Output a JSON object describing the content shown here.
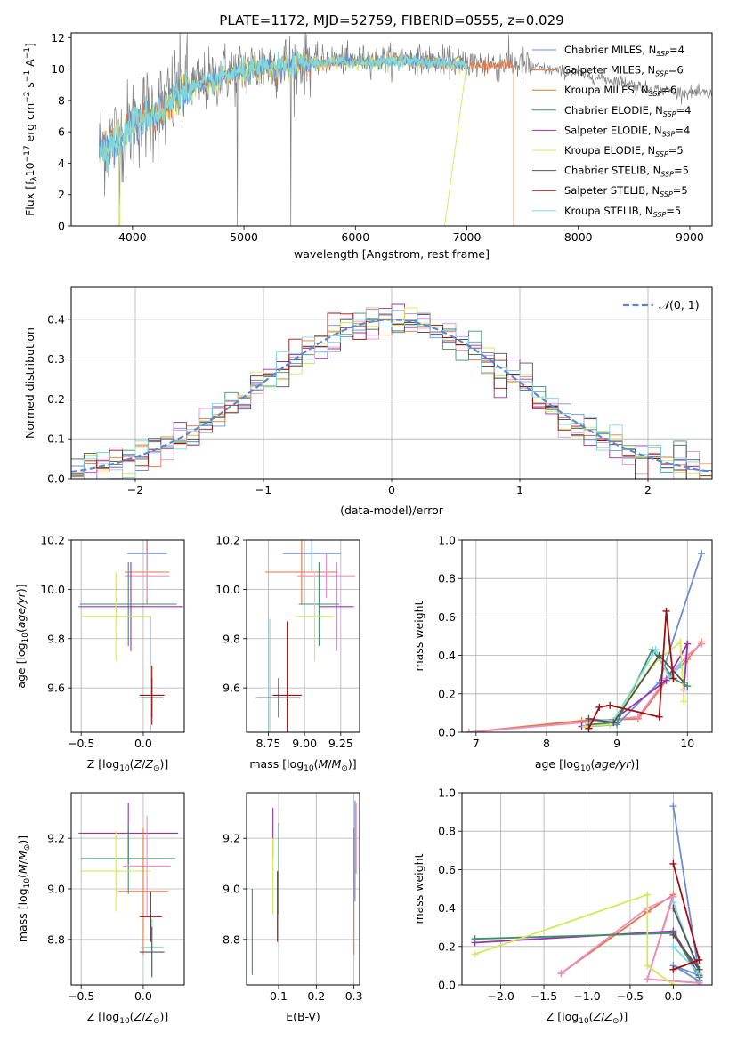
{
  "figure": {
    "title": "PLATE=1172, MJD=52759, FIBERID=0555, z=0.029"
  },
  "series_colors": {
    "Chabrier MILES": "#6a8fd0",
    "Salpeter MILES": "#e8733a",
    "Kroupa MILES": "#c9842a",
    "Chabrier ELODIE": "#3f8f6a",
    "Salpeter ELODIE": "#9b30b0",
    "Kroupa ELODIE": "#d4e85a",
    "Chabrier STELIB": "#555555",
    "Salpeter STELIB": "#a00f12",
    "Kroupa STELIB": "#7fd8de",
    "Kroupa MILES (pink)": "#e890c8"
  },
  "chart_data": [
    {
      "id": "spectrum",
      "type": "line",
      "title": "PLATE=1172, MJD=52759, FIBERID=0555, z=0.029",
      "xlabel": "wavelength [Angstrom, rest frame]",
      "ylabel": "Flux [f_λ10^-17 erg cm^-2 s^-1 A^-1]",
      "xlim": [
        3450,
        9200
      ],
      "ylim": [
        0,
        12.3
      ],
      "xticks": [
        4000,
        5000,
        6000,
        7000,
        8000,
        9000
      ],
      "yticks": [
        0,
        2,
        4,
        6,
        8,
        10,
        12
      ],
      "legend_position": "top-right",
      "legend": [
        {
          "name": "Chabrier MILES",
          "nssp": "4"
        },
        {
          "name": "Salpeter MILES",
          "nssp": "6"
        },
        {
          "name": "Kroupa MILES",
          "nssp": "6"
        },
        {
          "name": "Chabrier ELODIE",
          "nssp": "4"
        },
        {
          "name": "Salpeter ELODIE",
          "nssp": "4"
        },
        {
          "name": "Kroupa ELODIE",
          "nssp": "5"
        },
        {
          "name": "Chabrier STELIB",
          "nssp": "5"
        },
        {
          "name": "Salpeter STELIB",
          "nssp": "5"
        },
        {
          "name": "Kroupa STELIB",
          "nssp": "5"
        }
      ],
      "data_wavelength_range": [
        3700,
        9200
      ],
      "model_wavelength_range": [
        3700,
        7420
      ],
      "continuum": [
        [
          3700,
          5.0
        ],
        [
          3800,
          5.4
        ],
        [
          3900,
          5.6
        ],
        [
          4000,
          6.5
        ],
        [
          4100,
          7.1
        ],
        [
          4200,
          7.3
        ],
        [
          4300,
          7.6
        ],
        [
          4400,
          8.6
        ],
        [
          4500,
          8.9
        ],
        [
          4600,
          9.0
        ],
        [
          4700,
          9.3
        ],
        [
          4800,
          9.7
        ],
        [
          5000,
          10.0
        ],
        [
          5200,
          10.2
        ],
        [
          5400,
          10.4
        ],
        [
          5600,
          10.5
        ],
        [
          5800,
          10.6
        ],
        [
          6000,
          10.6
        ],
        [
          6200,
          10.6
        ],
        [
          6400,
          10.7
        ],
        [
          6600,
          10.6
        ],
        [
          6800,
          10.5
        ],
        [
          7000,
          10.4
        ],
        [
          7200,
          10.3
        ],
        [
          7400,
          10.4
        ],
        [
          7600,
          10.1
        ],
        [
          7800,
          9.9
        ],
        [
          8000,
          9.7
        ],
        [
          8200,
          9.4
        ],
        [
          8400,
          9.2
        ],
        [
          8600,
          8.8
        ],
        [
          8800,
          8.6
        ],
        [
          9000,
          8.5
        ],
        [
          9200,
          8.4
        ]
      ]
    },
    {
      "id": "residuals",
      "type": "histogram",
      "xlabel": "(data-model)/error",
      "ylabel": "Normed distribution",
      "xlim": [
        -2.5,
        2.5
      ],
      "ylim": [
        0,
        0.48
      ],
      "xticks": [
        -2,
        -1,
        0,
        1,
        2
      ],
      "yticks": [
        0,
        0.1,
        0.2,
        0.3,
        0.4
      ],
      "legend_position": "top-right",
      "legend": "N(0,1)",
      "grid": true,
      "bin_width": 0.1
    },
    {
      "id": "age-vs-Z",
      "type": "errorbar",
      "xlabel": "Z [log10(Z/Z⊙)]",
      "ylabel": "age [log10(age/yr)]",
      "xlim": [
        -0.58,
        0.33
      ],
      "ylim": [
        9.42,
        10.2
      ],
      "xticks": [
        -0.5,
        0.0
      ],
      "yticks": [
        9.6,
        9.8,
        10.0,
        10.2
      ],
      "grid": true,
      "points": [
        {
          "s": "Chabrier MILES",
          "x": 0.03,
          "y": 10.145,
          "xe": 0.16,
          "ye": 0.07
        },
        {
          "s": "Salpeter MILES",
          "x": 0.03,
          "y": 10.07,
          "xe": 0.18,
          "ye": 0.13
        },
        {
          "s": "Kroupa MILES (pink)",
          "x": 0.03,
          "y": 10.055,
          "xe": 0.18,
          "ye": 0.09
        },
        {
          "s": "Salpeter ELODIE",
          "x": -0.1,
          "y": 9.93,
          "xe": 0.42,
          "ye": 0.18
        },
        {
          "s": "Chabrier ELODIE",
          "x": -0.12,
          "y": 9.94,
          "xe": 0.39,
          "ye": 0.17
        },
        {
          "s": "Kroupa ELODIE",
          "x": -0.22,
          "y": 9.89,
          "xe": 0.28,
          "ye": 0.18
        },
        {
          "s": "Kroupa STELIB",
          "x": 0.06,
          "y": 9.56,
          "xe": 0.1,
          "ye": 0.33
        },
        {
          "s": "Chabrier STELIB",
          "x": 0.07,
          "y": 9.56,
          "xe": 0.09,
          "ye": 0.08
        },
        {
          "s": "Salpeter STELIB",
          "x": 0.07,
          "y": 9.57,
          "xe": 0.1,
          "ye": 0.12
        }
      ]
    },
    {
      "id": "age-vs-mass",
      "type": "errorbar",
      "xlabel": "mass [log10(M/M⊙)]",
      "xlim": [
        8.6,
        9.38
      ],
      "ylim": [
        9.42,
        10.2
      ],
      "xticks": [
        8.75,
        9.0,
        9.25
      ],
      "yticks": [
        9.6,
        9.8,
        10.0,
        10.2
      ],
      "grid": true,
      "points": [
        {
          "s": "Chabrier MILES",
          "x": 9.05,
          "y": 10.145,
          "xe": 0.2,
          "ye": 0.07
        },
        {
          "s": "Salpeter MILES",
          "x": 8.98,
          "y": 10.07,
          "xe": 0.25,
          "ye": 0.13
        },
        {
          "s": "Kroupa MILES (pink)",
          "x": 9.15,
          "y": 10.055,
          "xe": 0.2,
          "ye": 0.09
        },
        {
          "s": "Salpeter ELODIE",
          "x": 9.22,
          "y": 9.93,
          "xe": 0.12,
          "ye": 0.18
        },
        {
          "s": "Chabrier ELODIE",
          "x": 9.1,
          "y": 9.94,
          "xe": 0.14,
          "ye": 0.17
        },
        {
          "s": "Kroupa ELODIE",
          "x": 9.07,
          "y": 9.89,
          "xe": 0.13,
          "ye": 0.18
        },
        {
          "s": "Kroupa STELIB",
          "x": 8.76,
          "y": 9.56,
          "xe": 0.1,
          "ye": 0.32
        },
        {
          "s": "Chabrier STELIB",
          "x": 8.82,
          "y": 9.56,
          "xe": 0.15,
          "ye": 0.08
        },
        {
          "s": "Salpeter STELIB",
          "x": 8.88,
          "y": 9.57,
          "xe": 0.1,
          "ye": 0.3
        }
      ]
    },
    {
      "id": "massweight-vs-age",
      "type": "line",
      "xlabel": "age [log10(age/yr)]",
      "ylabel": "mass weight",
      "xlim": [
        6.8,
        10.35
      ],
      "ylim": [
        0,
        1.0
      ],
      "xticks": [
        7,
        8,
        9,
        10
      ],
      "yticks": [
        0.0,
        0.2,
        0.4,
        0.6,
        0.8,
        1.0
      ],
      "grid": true,
      "series": [
        {
          "s": "Salpeter MILES",
          "x": [
            6.9,
            8.5,
            9.3,
            9.7,
            10.0,
            10.2
          ],
          "y": [
            0.0,
            0.06,
            0.07,
            0.27,
            0.38,
            0.47
          ]
        },
        {
          "s": "Kroupa MILES (pink)",
          "x": [
            6.9,
            8.5,
            9.3,
            9.7,
            10.0,
            10.2
          ],
          "y": [
            0.0,
            0.05,
            0.08,
            0.28,
            0.4,
            0.46
          ]
        },
        {
          "s": "Chabrier MILES",
          "x": [
            8.6,
            9.0,
            9.6,
            10.2
          ],
          "y": [
            0.03,
            0.04,
            0.26,
            0.93
          ]
        },
        {
          "s": "Salpeter ELODIE",
          "x": [
            8.5,
            8.9,
            9.7,
            10.0,
            9.95
          ],
          "y": [
            0.03,
            0.05,
            0.27,
            0.46,
            0.22
          ]
        },
        {
          "s": "Chabrier ELODIE",
          "x": [
            8.6,
            9.0,
            9.5,
            9.8,
            10.0
          ],
          "y": [
            0.04,
            0.05,
            0.43,
            0.28,
            0.24
          ]
        },
        {
          "s": "Kroupa ELODIE",
          "x": [
            8.55,
            8.9,
            9.5,
            9.9,
            9.95
          ],
          "y": [
            0.03,
            0.04,
            0.35,
            0.47,
            0.16
          ]
        },
        {
          "s": "Kroupa STELIB",
          "x": [
            8.6,
            8.95,
            9.55,
            9.75,
            9.9
          ],
          "y": [
            0.07,
            0.06,
            0.43,
            0.28,
            0.35
          ]
        },
        {
          "s": "Chabrier STELIB",
          "x": [
            8.6,
            8.95,
            9.6,
            9.95
          ],
          "y": [
            0.07,
            0.05,
            0.4,
            0.26
          ]
        },
        {
          "s": "Salpeter STELIB",
          "x": [
            8.6,
            8.75,
            8.9,
            9.6,
            9.7,
            9.8
          ],
          "y": [
            0.02,
            0.13,
            0.14,
            0.08,
            0.63,
            0.28
          ]
        }
      ]
    },
    {
      "id": "mass-vs-Z",
      "type": "errorbar",
      "xlabel": "Z [log10(Z/Z⊙)]",
      "ylabel": "mass [log10(M/M⊙)]",
      "xlim": [
        -0.58,
        0.33
      ],
      "ylim": [
        8.62,
        9.38
      ],
      "xticks": [
        -0.5,
        0.0
      ],
      "yticks": [
        8.8,
        9.0,
        9.2
      ],
      "grid": true,
      "points": [
        {
          "s": "Salpeter ELODIE",
          "x": -0.12,
          "y": 9.22,
          "xe": 0.4,
          "ye": 0.12
        },
        {
          "s": "Chabrier ELODIE",
          "x": -0.12,
          "y": 9.12,
          "xe": 0.38,
          "ye": 0.14
        },
        {
          "s": "Kroupa MILES (pink)",
          "x": 0.03,
          "y": 9.09,
          "xe": 0.19,
          "ye": 0.2
        },
        {
          "s": "Kroupa ELODIE",
          "x": -0.22,
          "y": 9.07,
          "xe": 0.28,
          "ye": 0.16
        },
        {
          "s": "Salpeter MILES",
          "x": 0.0,
          "y": 8.99,
          "xe": 0.2,
          "ye": 0.25
        },
        {
          "s": "Salpeter STELIB",
          "x": 0.06,
          "y": 8.89,
          "xe": 0.09,
          "ye": 0.1
        },
        {
          "s": "Kroupa STELIB",
          "x": 0.07,
          "y": 8.77,
          "xe": 0.09,
          "ye": 0.11
        },
        {
          "s": "Chabrier STELIB",
          "x": 0.07,
          "y": 8.75,
          "xe": 0.1,
          "ye": 0.1
        }
      ]
    },
    {
      "id": "mass-vs-EBV",
      "type": "errorbar",
      "xlabel": "E(B-V)",
      "xlim": [
        0.015,
        0.315
      ],
      "ylim": [
        8.62,
        9.38
      ],
      "xticks": [
        0.1,
        0.2,
        0.3
      ],
      "yticks": [
        8.8,
        9.0,
        9.2
      ],
      "grid": true,
      "points": [
        {
          "s": "Chabrier ELODIE",
          "x": 0.03,
          "y": 8.83,
          "ye": 0.17
        },
        {
          "s": "Salpeter ELODIE",
          "x": 0.085,
          "y": 9.22,
          "ye": 0.1
        },
        {
          "s": "Kroupa ELODIE",
          "x": 0.085,
          "y": 9.05,
          "ye": 0.15
        },
        {
          "s": "Chabrier ELODIE",
          "x": 0.1,
          "y": 9.08,
          "ye": 0.18
        },
        {
          "s": "Salpeter STELIB",
          "x": 0.097,
          "y": 8.93,
          "ye": 0.14
        },
        {
          "s": "Salpeter MILES",
          "x": 0.3,
          "y": 8.99,
          "ye": 0.25
        },
        {
          "s": "Chabrier MILES",
          "x": 0.303,
          "y": 9.15,
          "ye": 0.2
        },
        {
          "s": "Kroupa MILES (pink)",
          "x": 0.306,
          "y": 9.2,
          "ye": 0.14
        }
      ]
    },
    {
      "id": "massweight-vs-Z",
      "type": "line",
      "xlabel": "Z [log10(Z/Z⊙)]",
      "ylabel": "mass weight",
      "xlim": [
        -2.45,
        0.45
      ],
      "ylim": [
        0,
        1.0
      ],
      "xticks": [
        -2.0,
        -1.5,
        -1.0,
        -0.5,
        0.0
      ],
      "yticks": [
        0.0,
        0.2,
        0.4,
        0.6,
        0.8,
        1.0
      ],
      "grid": true,
      "series": [
        {
          "s": "Chabrier MILES",
          "x": [
            0.0,
            0.3,
            0.0,
            0.3
          ],
          "y": [
            0.93,
            0.05,
            0.1,
            0.02
          ]
        },
        {
          "s": "Salpeter MILES",
          "x": [
            -1.3,
            -0.3,
            0.0,
            -0.3,
            0.3
          ],
          "y": [
            0.06,
            0.38,
            0.47,
            0.03,
            0.01
          ]
        },
        {
          "s": "Kroupa MILES (pink)",
          "x": [
            -1.3,
            -0.3,
            0.0,
            -0.3,
            0.3
          ],
          "y": [
            0.06,
            0.4,
            0.46,
            0.03,
            0.01
          ]
        },
        {
          "s": "Salpeter ELODIE",
          "x": [
            -2.3,
            0.0,
            0.3
          ],
          "y": [
            0.22,
            0.28,
            0.05
          ]
        },
        {
          "s": "Chabrier ELODIE",
          "x": [
            -2.3,
            0.0,
            0.3
          ],
          "y": [
            0.24,
            0.27,
            0.04
          ]
        },
        {
          "s": "Kroupa ELODIE",
          "x": [
            -2.3,
            -0.3,
            -0.3,
            0.0
          ],
          "y": [
            0.16,
            0.47,
            0.1,
            0.0
          ]
        },
        {
          "s": "Kroupa STELIB",
          "x": [
            0.0,
            0.3,
            0.0
          ],
          "y": [
            0.43,
            0.06,
            0.2
          ]
        },
        {
          "s": "Chabrier STELIB",
          "x": [
            0.0,
            0.3,
            0.0
          ],
          "y": [
            0.4,
            0.08,
            0.26
          ]
        },
        {
          "s": "Salpeter STELIB",
          "x": [
            0.0,
            0.3,
            0.0
          ],
          "y": [
            0.63,
            0.13,
            0.08
          ]
        }
      ]
    }
  ]
}
